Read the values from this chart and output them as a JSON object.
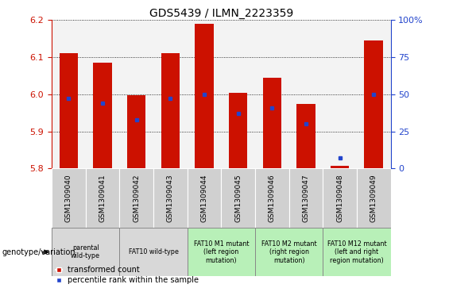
{
  "title": "GDS5439 / ILMN_2223359",
  "samples": [
    "GSM1309040",
    "GSM1309041",
    "GSM1309042",
    "GSM1309043",
    "GSM1309044",
    "GSM1309045",
    "GSM1309046",
    "GSM1309047",
    "GSM1309048",
    "GSM1309049"
  ],
  "transformed_count": [
    6.11,
    6.085,
    5.997,
    6.11,
    6.19,
    6.005,
    6.045,
    5.975,
    5.808,
    6.145
  ],
  "percentile_rank": [
    47,
    44,
    33,
    47,
    50,
    37,
    41,
    30,
    7,
    50
  ],
  "ylim_left": [
    5.8,
    6.2
  ],
  "ylim_right": [
    0,
    100
  ],
  "yticks_left": [
    5.8,
    5.9,
    6.0,
    6.1,
    6.2
  ],
  "yticks_right": [
    0,
    25,
    50,
    75,
    100
  ],
  "bar_color": "#cc1100",
  "dot_color": "#2244cc",
  "bar_width": 0.55,
  "bar_bottom": 5.8,
  "group_defs": [
    {
      "start": 0,
      "end": 1,
      "color": "#d8d8d8",
      "label": "parental\nwild-type"
    },
    {
      "start": 2,
      "end": 3,
      "color": "#d8d8d8",
      "label": "FAT10 wild-type"
    },
    {
      "start": 4,
      "end": 5,
      "color": "#b8f0b8",
      "label": "FAT10 M1 mutant\n(left region\nmutation)"
    },
    {
      "start": 6,
      "end": 7,
      "color": "#b8f0b8",
      "label": "FAT10 M2 mutant\n(right region\nmutation)"
    },
    {
      "start": 8,
      "end": 9,
      "color": "#b8f0b8",
      "label": "FAT10 M12 mutant\n(left and right\nregion mutation)"
    }
  ],
  "genotype_label": "genotype/variation",
  "legend_red": "transformed count",
  "legend_blue": "percentile rank within the sample",
  "title_fontsize": 10,
  "tick_fontsize": 7,
  "label_fontsize": 7
}
